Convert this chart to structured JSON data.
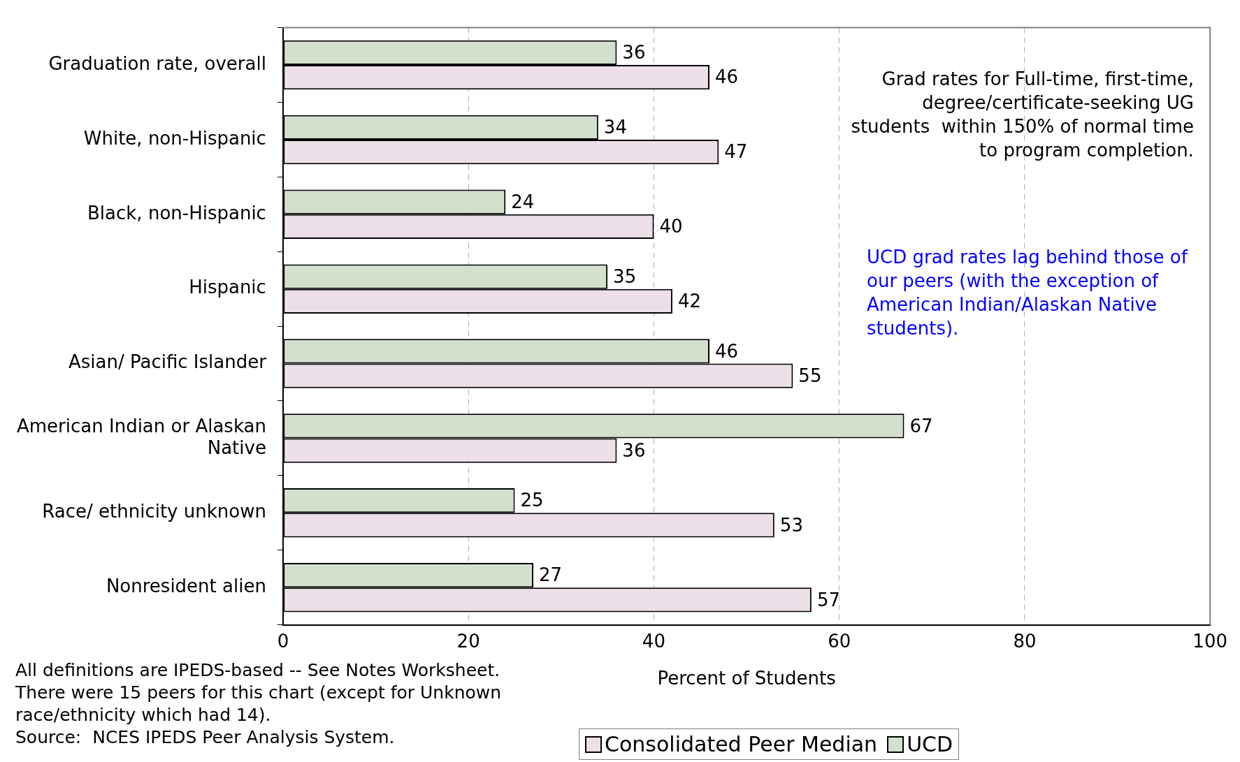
{
  "chart_data": {
    "type": "bar",
    "orientation": "horizontal",
    "categories": [
      "Graduation rate, overall",
      "White, non-Hispanic",
      "Black, non-Hispanic",
      "Hispanic",
      "Asian/ Pacific Islander",
      "American Indian or Alaskan Native",
      "Race/ ethnicity unknown",
      "Nonresident alien"
    ],
    "series": [
      {
        "name": "UCD",
        "color": "#d3e0cc",
        "values": [
          36,
          34,
          24,
          35,
          46,
          67,
          25,
          27
        ]
      },
      {
        "name": "Consolidated Peer Median",
        "color": "#ecdfe8",
        "values": [
          46,
          47,
          40,
          42,
          55,
          36,
          53,
          57
        ]
      }
    ],
    "xlim": [
      0,
      100
    ],
    "xticks": [
      0,
      20,
      40,
      60,
      80,
      100
    ],
    "xlabel": "Percent of Students",
    "grid": "x",
    "data_labels": true,
    "legend": "bottom",
    "annotations": [
      "Grad rates for Full-time, first-time, degree/certificate-seeking UG students  within 150% of normal time to program completion.",
      "UCD grad rates lag behind those of our peers (with the exception of American Indian/Alaskan Native students).",
      "All definitions are IPEDS-based -- See Notes Worksheet.",
      "There were 15 peers for this chart (except for Unknown race/ethnicity which had 14).",
      "Source:  NCES IPEDS Peer Analysis System."
    ]
  }
}
